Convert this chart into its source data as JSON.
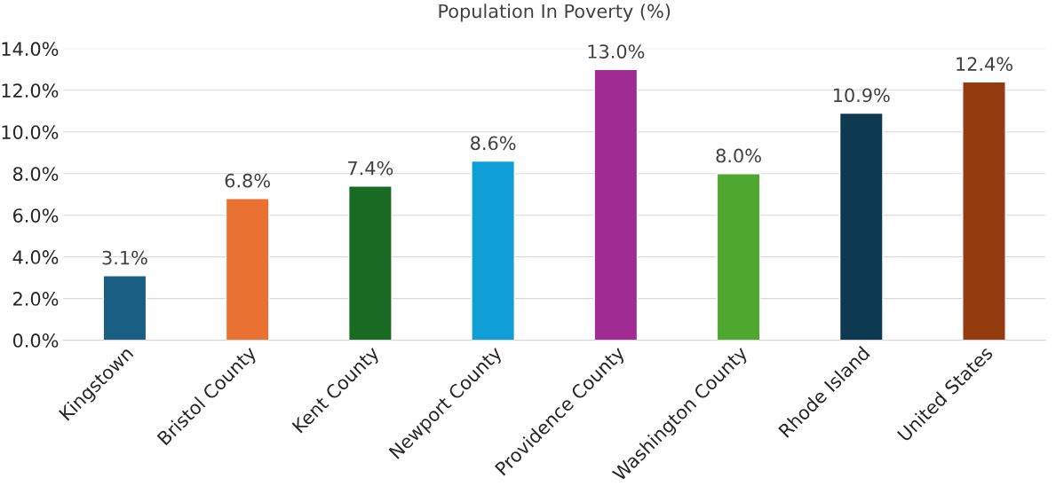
{
  "chart_data": {
    "type": "bar",
    "title": "Population In Poverty (%)",
    "categories": [
      "Kingstown",
      "Bristol County",
      "Kent County",
      "Newport County",
      "Providence County",
      "Washington County",
      "Rhode Island",
      "United States"
    ],
    "values": [
      3.1,
      6.8,
      7.4,
      8.6,
      13.0,
      8.0,
      10.9,
      12.4
    ],
    "colors": [
      "#1a5e84",
      "#e97132",
      "#196b24",
      "#0f9ed5",
      "#a02b93",
      "#4ea72e",
      "#0e3a51",
      "#953b10"
    ],
    "value_labels": [
      "3.1%",
      "6.8%",
      "7.4%",
      "8.6%",
      "13.0%",
      "8.0%",
      "10.9%",
      "12.4%"
    ],
    "ylim": [
      0,
      14
    ],
    "yticks": [
      {
        "value": 0,
        "label": "0.0%"
      },
      {
        "value": 2,
        "label": "2.0%"
      },
      {
        "value": 4,
        "label": "4.0%"
      },
      {
        "value": 6,
        "label": "6.0%"
      },
      {
        "value": 8,
        "label": "8.0%"
      },
      {
        "value": 10,
        "label": "10.0%"
      },
      {
        "value": 12,
        "label": "12.0%"
      },
      {
        "value": 14,
        "label": "14.0%"
      }
    ],
    "grid": "y",
    "legend": false
  }
}
